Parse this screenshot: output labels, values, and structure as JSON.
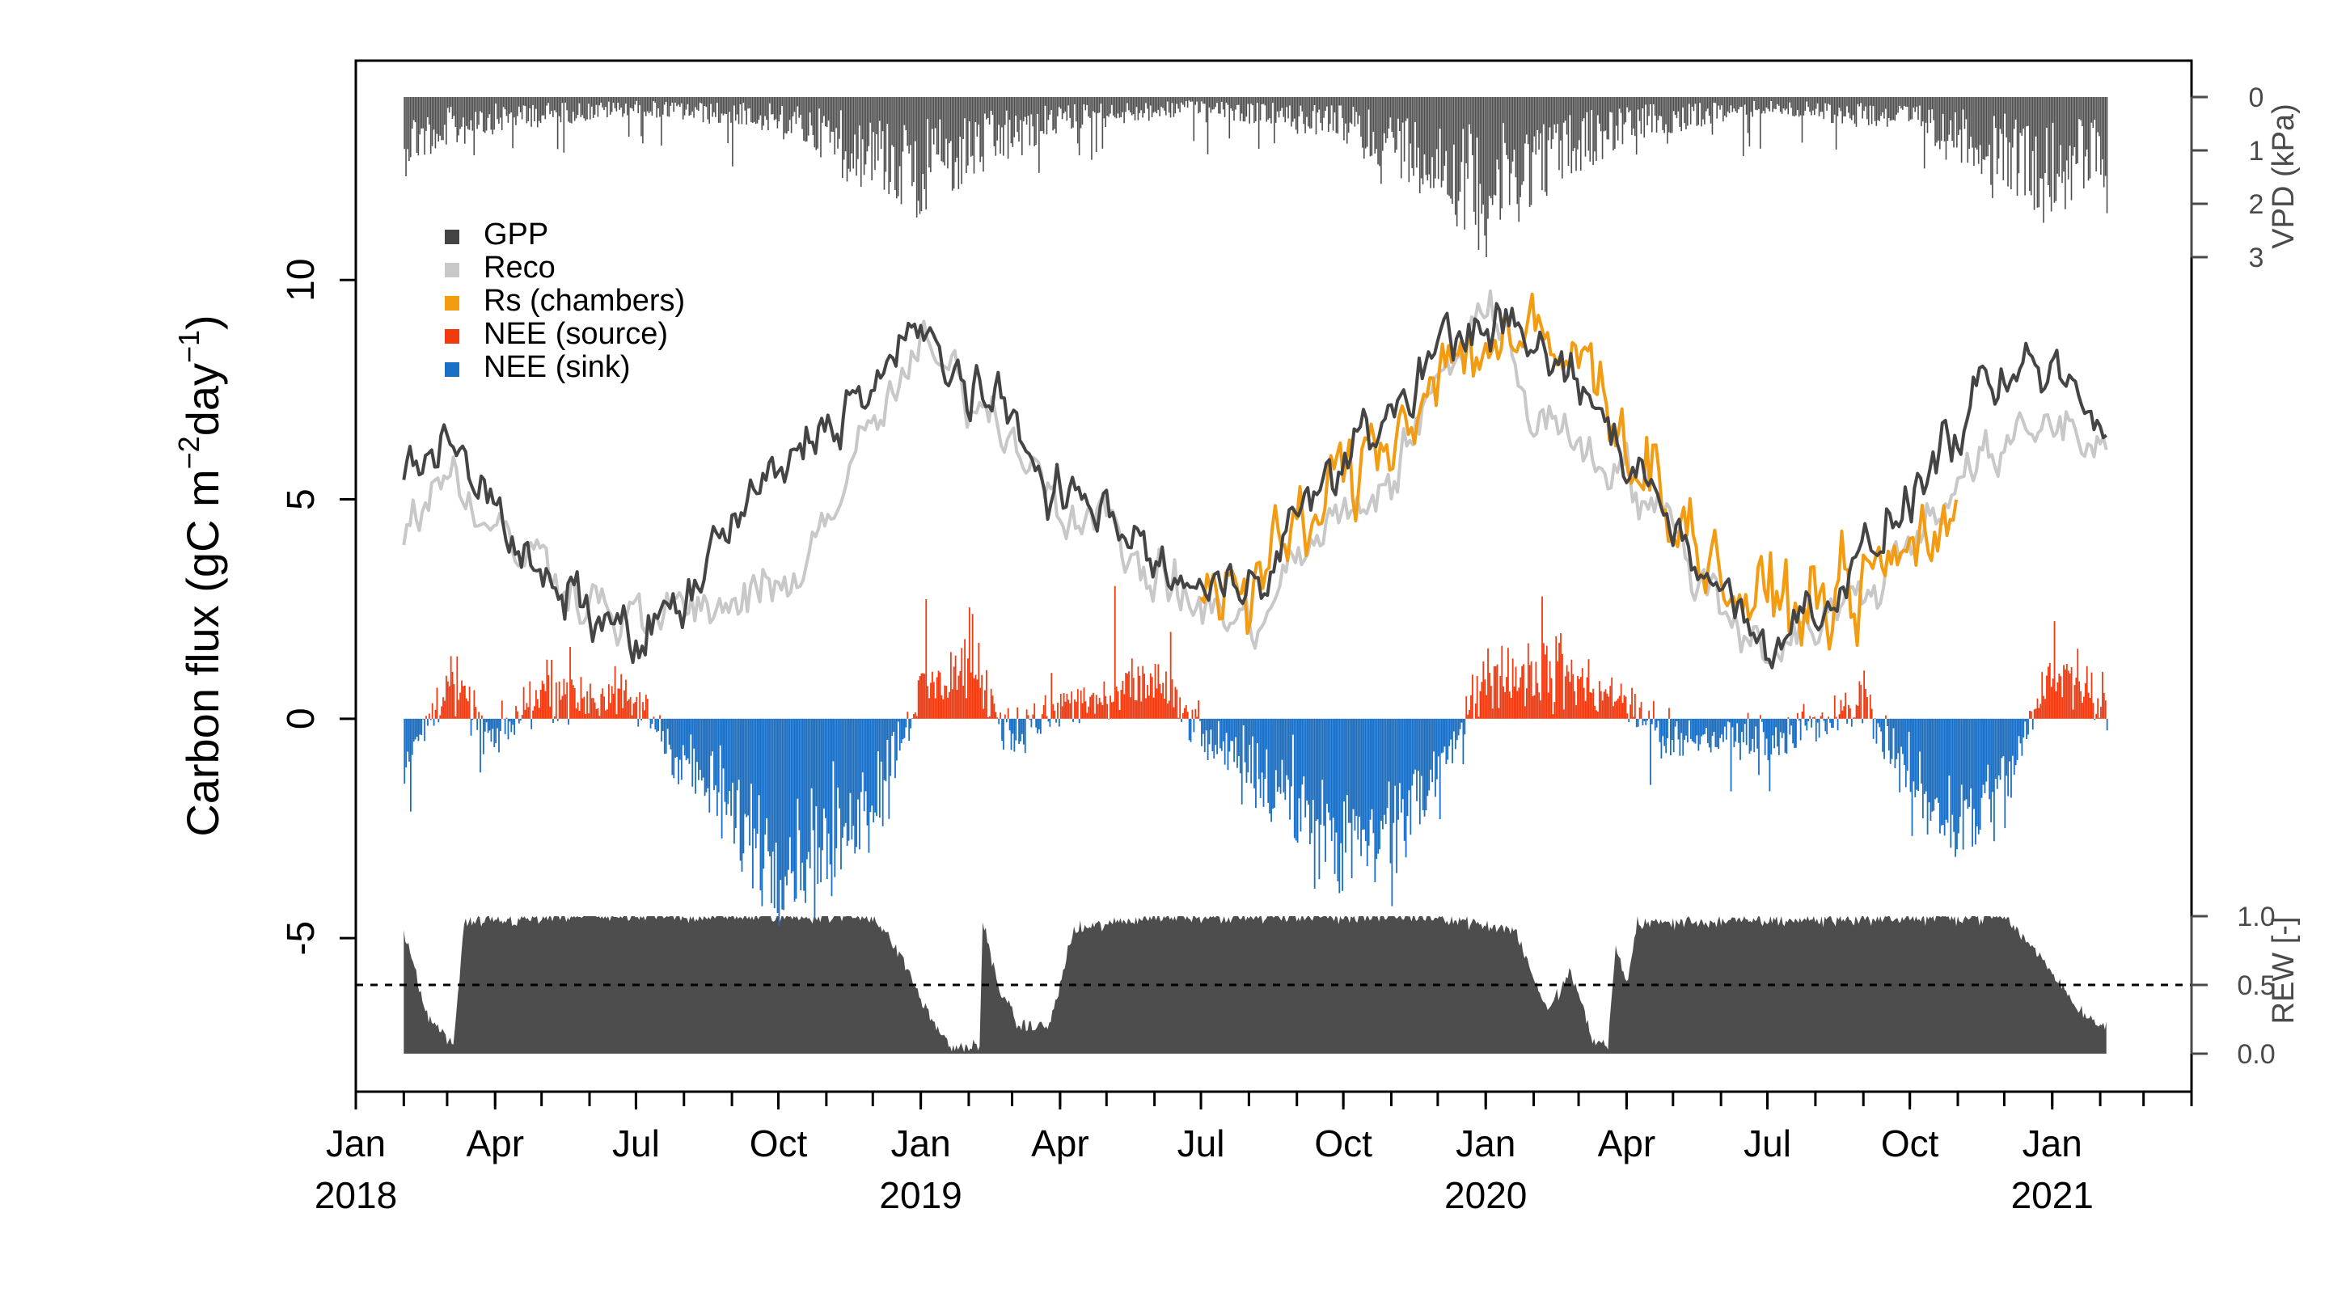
{
  "chart_data": {
    "type": "time-series composite (bar + line + area)",
    "y_label_main": "Carbon flux (gC m",
    "y_label_sup1": "−2",
    "y_label_mid": "day",
    "y_label_sup2": "−1",
    "y_label_end": ")",
    "ylim": [
      -8.5,
      15
    ],
    "yticks": [
      "-5",
      "0",
      "5",
      "10"
    ],
    "yticks_values": [
      -5,
      0,
      5,
      10
    ],
    "x_start": "2018-01-01",
    "x_end": "2021-04-01",
    "data_start": "2018-02-01",
    "data_end": "2021-02-05",
    "x_tick_months": [
      "2018-01",
      "2018-04",
      "2018-07",
      "2018-10",
      "2019-01",
      "2019-04",
      "2019-07",
      "2019-10",
      "2020-01",
      "2020-04",
      "2020-07",
      "2020-10",
      "2021-01"
    ],
    "x_tick_labels": [
      "Jan",
      "Apr",
      "Jul",
      "Oct",
      "Jan",
      "Apr",
      "Jul",
      "Oct",
      "Jan",
      "Apr",
      "Jul",
      "Oct",
      "Jan"
    ],
    "x_year_labels": [
      {
        "date": "2018-01",
        "label": "2018"
      },
      {
        "date": "2019-01",
        "label": "2019"
      },
      {
        "date": "2020-01",
        "label": "2020"
      },
      {
        "date": "2021-01",
        "label": "2021"
      }
    ],
    "vpd_axis": {
      "label": "VPD (kPa)",
      "ticks": [
        "0",
        "1",
        "2",
        "3"
      ],
      "values": [
        0,
        1,
        2,
        3
      ]
    },
    "rew_axis": {
      "label": "REW [-]",
      "ticks": [
        "1.0",
        "0.5",
        "0.0"
      ],
      "values": [
        1.0,
        0.5,
        0.0
      ],
      "threshold": 0.5
    },
    "legend": [
      {
        "name": "GPP",
        "color": "#444444"
      },
      {
        "name": "Reco",
        "color": "#c8c8c8"
      },
      {
        "name": "Rs (chambers)",
        "color": "#f39c12"
      },
      {
        "name": "NEE (source)",
        "color": "#f23a10"
      },
      {
        "name": "NEE (sink)",
        "color": "#1a6fc4"
      }
    ],
    "series_gpp": [
      [
        "2018-02-01",
        5.2
      ],
      [
        "2018-03-01",
        6.8
      ],
      [
        "2018-04-01",
        4.6
      ],
      [
        "2018-05-01",
        3.0
      ],
      [
        "2018-06-01",
        2.5
      ],
      [
        "2018-07-01",
        1.8
      ],
      [
        "2018-08-01",
        2.6
      ],
      [
        "2018-09-01",
        4.4
      ],
      [
        "2018-10-01",
        5.6
      ],
      [
        "2018-11-01",
        6.8
      ],
      [
        "2018-12-01",
        7.6
      ],
      [
        "2019-01-01",
        8.8
      ],
      [
        "2019-02-01",
        7.6
      ],
      [
        "2019-03-01",
        6.6
      ],
      [
        "2019-04-01",
        5.2
      ],
      [
        "2019-05-01",
        4.6
      ],
      [
        "2019-06-01",
        3.6
      ],
      [
        "2019-07-01",
        2.8
      ],
      [
        "2019-08-01",
        3.2
      ],
      [
        "2019-09-01",
        4.6
      ],
      [
        "2019-10-01",
        5.8
      ],
      [
        "2019-11-01",
        7.0
      ],
      [
        "2019-12-01",
        8.4
      ],
      [
        "2020-01-01",
        9.2
      ],
      [
        "2020-02-01",
        8.4
      ],
      [
        "2020-03-01",
        7.6
      ],
      [
        "2020-04-01",
        6.0
      ],
      [
        "2020-05-01",
        4.6
      ],
      [
        "2020-06-01",
        2.8
      ],
      [
        "2020-07-01",
        1.8
      ],
      [
        "2020-08-01",
        2.6
      ],
      [
        "2020-09-01",
        3.6
      ],
      [
        "2020-10-01",
        5.0
      ],
      [
        "2020-11-01",
        6.6
      ],
      [
        "2020-12-01",
        7.6
      ],
      [
        "2021-01-01",
        8.0
      ],
      [
        "2021-02-05",
        6.4
      ]
    ],
    "series_reco": [
      [
        "2018-02-01",
        4.2
      ],
      [
        "2018-03-01",
        5.8
      ],
      [
        "2018-04-01",
        4.2
      ],
      [
        "2018-05-01",
        3.6
      ],
      [
        "2018-06-01",
        2.8
      ],
      [
        "2018-07-01",
        2.2
      ],
      [
        "2018-08-01",
        2.4
      ],
      [
        "2018-09-01",
        2.6
      ],
      [
        "2018-10-01",
        2.8
      ],
      [
        "2018-11-01",
        4.6
      ],
      [
        "2018-12-01",
        6.6
      ],
      [
        "2019-01-01",
        8.4
      ],
      [
        "2019-02-01",
        7.4
      ],
      [
        "2019-03-01",
        6.6
      ],
      [
        "2019-04-01",
        5.0
      ],
      [
        "2019-05-01",
        4.4
      ],
      [
        "2019-06-01",
        3.2
      ],
      [
        "2019-07-01",
        2.6
      ],
      [
        "2019-08-01",
        2.0
      ],
      [
        "2019-09-01",
        3.6
      ],
      [
        "2019-10-01",
        4.6
      ],
      [
        "2019-11-01",
        5.4
      ],
      [
        "2019-12-01",
        7.6
      ],
      [
        "2020-01-01",
        9.6
      ],
      [
        "2020-02-01",
        7.0
      ],
      [
        "2020-03-01",
        6.4
      ],
      [
        "2020-04-01",
        5.6
      ],
      [
        "2020-05-01",
        4.2
      ],
      [
        "2020-06-01",
        2.6
      ],
      [
        "2020-07-01",
        1.6
      ],
      [
        "2020-08-01",
        2.2
      ],
      [
        "2020-09-01",
        2.8
      ],
      [
        "2020-10-01",
        4.0
      ],
      [
        "2020-11-01",
        5.6
      ],
      [
        "2020-12-01",
        6.0
      ],
      [
        "2021-01-01",
        6.8
      ],
      [
        "2021-02-05",
        6.2
      ]
    ],
    "series_rs": [
      [
        "2019-07-01",
        3.4
      ],
      [
        "2019-08-01",
        2.8
      ],
      [
        "2019-09-01",
        4.2
      ],
      [
        "2019-10-01",
        5.4
      ],
      [
        "2019-11-01",
        6.6
      ],
      [
        "2019-12-01",
        8.0
      ],
      [
        "2020-01-01",
        8.6
      ],
      [
        "2020-02-01",
        8.4
      ],
      [
        "2020-03-01",
        8.2
      ],
      [
        "2020-04-01",
        6.6
      ],
      [
        "2020-05-01",
        4.8
      ],
      [
        "2020-06-01",
        3.2
      ],
      [
        "2020-07-01",
        2.4
      ],
      [
        "2020-08-01",
        2.8
      ],
      [
        "2020-09-01",
        3.0
      ],
      [
        "2020-10-01",
        3.8
      ],
      [
        "2020-11-01",
        5.0
      ]
    ],
    "series_nee": [
      [
        "2018-02-01",
        -1.2
      ],
      [
        "2018-03-01",
        0.9
      ],
      [
        "2018-04-01",
        -0.6
      ],
      [
        "2018-05-01",
        0.8
      ],
      [
        "2018-06-01",
        0.5
      ],
      [
        "2018-07-01",
        0.4
      ],
      [
        "2018-08-01",
        -1.0
      ],
      [
        "2018-09-01",
        -2.2
      ],
      [
        "2018-10-01",
        -3.2
      ],
      [
        "2018-11-01",
        -3.0
      ],
      [
        "2018-12-01",
        -1.8
      ],
      [
        "2019-01-01",
        0.6
      ],
      [
        "2019-02-01",
        1.2
      ],
      [
        "2019-03-01",
        -0.4
      ],
      [
        "2019-04-01",
        0.3
      ],
      [
        "2019-05-01",
        0.4
      ],
      [
        "2019-06-01",
        0.9
      ],
      [
        "2019-07-01",
        -0.4
      ],
      [
        "2019-08-01",
        -1.2
      ],
      [
        "2019-09-01",
        -2.0
      ],
      [
        "2019-10-01",
        -2.8
      ],
      [
        "2019-11-01",
        -2.6
      ],
      [
        "2019-12-01",
        -1.2
      ],
      [
        "2020-01-01",
        1.0
      ],
      [
        "2020-02-01",
        1.2
      ],
      [
        "2020-03-01",
        0.8
      ],
      [
        "2020-04-01",
        0.3
      ],
      [
        "2020-05-01",
        -0.6
      ],
      [
        "2020-06-01",
        -0.4
      ],
      [
        "2020-07-01",
        -0.5
      ],
      [
        "2020-08-01",
        -0.2
      ],
      [
        "2020-09-01",
        0.4
      ],
      [
        "2020-10-01",
        -1.6
      ],
      [
        "2020-11-01",
        -2.4
      ],
      [
        "2020-12-01",
        -1.6
      ],
      [
        "2021-01-01",
        1.2
      ],
      [
        "2021-02-05",
        0.5
      ]
    ],
    "series_vpd": [
      [
        "2018-02-01",
        0.8
      ],
      [
        "2018-04-01",
        0.4
      ],
      [
        "2018-07-01",
        0.2
      ],
      [
        "2018-10-01",
        0.4
      ],
      [
        "2018-12-01",
        1.0
      ],
      [
        "2019-01-01",
        1.4
      ],
      [
        "2019-02-01",
        1.0
      ],
      [
        "2019-04-01",
        0.4
      ],
      [
        "2019-07-01",
        0.2
      ],
      [
        "2019-10-01",
        0.5
      ],
      [
        "2019-12-01",
        1.2
      ],
      [
        "2020-01-01",
        1.8
      ],
      [
        "2020-02-01",
        1.2
      ],
      [
        "2020-04-01",
        0.5
      ],
      [
        "2020-07-01",
        0.2
      ],
      [
        "2020-10-01",
        0.4
      ],
      [
        "2020-12-01",
        1.0
      ],
      [
        "2021-01-01",
        1.4
      ],
      [
        "2021-02-05",
        1.0
      ]
    ],
    "series_rew": [
      [
        "2018-02-01",
        0.9
      ],
      [
        "2018-02-15",
        0.3
      ],
      [
        "2018-03-05",
        0.05
      ],
      [
        "2018-03-12",
        0.95
      ],
      [
        "2018-06-01",
        1.0
      ],
      [
        "2018-12-01",
        1.0
      ],
      [
        "2018-12-20",
        0.7
      ],
      [
        "2019-01-05",
        0.3
      ],
      [
        "2019-01-20",
        0.05
      ],
      [
        "2019-02-08",
        0.05
      ],
      [
        "2019-02-10",
        0.95
      ],
      [
        "2019-02-20",
        0.5
      ],
      [
        "2019-03-05",
        0.2
      ],
      [
        "2019-03-25",
        0.2
      ],
      [
        "2019-04-10",
        0.9
      ],
      [
        "2019-06-01",
        1.0
      ],
      [
        "2019-12-01",
        1.0
      ],
      [
        "2020-01-20",
        0.9
      ],
      [
        "2020-02-10",
        0.3
      ],
      [
        "2020-02-25",
        0.6
      ],
      [
        "2020-03-10",
        0.1
      ],
      [
        "2020-03-20",
        0.05
      ],
      [
        "2020-03-25",
        0.8
      ],
      [
        "2020-04-01",
        0.5
      ],
      [
        "2020-04-08",
        0.95
      ],
      [
        "2020-12-01",
        1.0
      ],
      [
        "2020-12-25",
        0.7
      ],
      [
        "2021-01-20",
        0.3
      ],
      [
        "2021-02-05",
        0.2
      ]
    ]
  }
}
